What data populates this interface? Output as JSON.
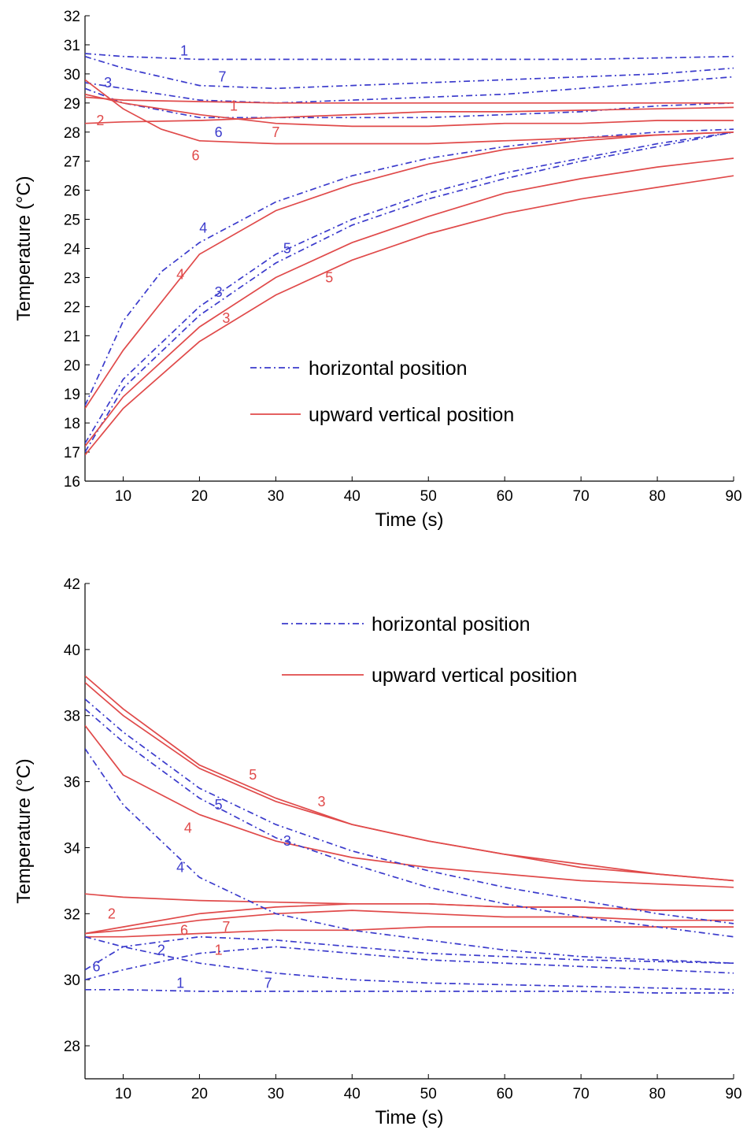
{
  "colors": {
    "horizontal": "#3b3bcc",
    "vertical": "#e04a4a"
  },
  "chart_data": [
    {
      "type": "line",
      "xlabel": "Time (s)",
      "ylabel": "Temperature (°C)",
      "xlim": [
        5,
        90
      ],
      "ylim": [
        16,
        32
      ],
      "xticks": [
        "10",
        "20",
        "30",
        "40",
        "50",
        "60",
        "70",
        "80",
        "90"
      ],
      "yticks": [
        "16",
        "17",
        "18",
        "19",
        "20",
        "21",
        "22",
        "23",
        "24",
        "25",
        "26",
        "27",
        "28",
        "29",
        "30",
        "31",
        "32"
      ],
      "legend": {
        "placement": "center",
        "entries": [
          "horizontal position",
          "upward vertical position"
        ]
      },
      "series": [
        {
          "group": "horizontal",
          "label": "1",
          "label_at": [
            18,
            30.8
          ],
          "x": [
            5,
            10,
            20,
            30,
            40,
            50,
            60,
            70,
            80,
            90
          ],
          "y": [
            30.7,
            30.6,
            30.5,
            30.5,
            30.5,
            30.5,
            30.5,
            30.5,
            30.55,
            30.6
          ]
        },
        {
          "group": "horizontal",
          "label": "7",
          "label_at": [
            23,
            29.9
          ],
          "x": [
            5,
            10,
            20,
            30,
            40,
            50,
            60,
            70,
            80,
            90
          ],
          "y": [
            30.6,
            30.2,
            29.6,
            29.5,
            29.6,
            29.7,
            29.8,
            29.9,
            30.0,
            30.2
          ]
        },
        {
          "group": "horizontal",
          "label": "3",
          "label_at": [
            8,
            29.7
          ],
          "x": [
            5,
            10,
            20,
            30,
            40,
            50,
            60,
            70,
            80,
            90
          ],
          "y": [
            29.7,
            29.5,
            29.1,
            29.0,
            29.1,
            29.2,
            29.3,
            29.5,
            29.7,
            29.9
          ]
        },
        {
          "group": "horizontal",
          "label": "6",
          "label_at": [
            22.5,
            28.0
          ],
          "x": [
            5,
            10,
            20,
            30,
            40,
            50,
            60,
            70,
            80,
            90
          ],
          "y": [
            29.5,
            29.0,
            28.5,
            28.5,
            28.5,
            28.5,
            28.6,
            28.7,
            28.9,
            29.0
          ]
        },
        {
          "group": "horizontal",
          "label": "4",
          "label_at": [
            20.5,
            24.7
          ],
          "x": [
            5,
            10,
            15,
            20,
            30,
            40,
            50,
            60,
            70,
            80,
            90
          ],
          "y": [
            18.6,
            21.5,
            23.2,
            24.2,
            25.6,
            26.5,
            27.1,
            27.5,
            27.8,
            28.0,
            28.1
          ]
        },
        {
          "group": "horizontal",
          "label": "5",
          "label_at": [
            31.5,
            24.0
          ],
          "x": [
            5,
            10,
            20,
            30,
            40,
            50,
            60,
            70,
            80,
            90
          ],
          "y": [
            17.3,
            19.5,
            22.0,
            23.8,
            25.0,
            25.9,
            26.6,
            27.1,
            27.6,
            28.0
          ]
        },
        {
          "group": "horizontal",
          "label": "3",
          "label_at": [
            22.5,
            22.5
          ],
          "x": [
            5,
            10,
            20,
            30,
            40,
            50,
            60,
            70,
            80,
            90
          ],
          "y": [
            17.0,
            19.2,
            21.7,
            23.5,
            24.8,
            25.7,
            26.4,
            27.0,
            27.5,
            28.0
          ]
        },
        {
          "group": "vertical",
          "label": "1",
          "label_at": [
            24.5,
            28.9
          ],
          "x": [
            5,
            10,
            20,
            30,
            40,
            50,
            60,
            70,
            80,
            90
          ],
          "y": [
            29.2,
            29.1,
            29.05,
            29.0,
            29.0,
            29.0,
            29.0,
            29.0,
            29.0,
            29.0
          ]
        },
        {
          "group": "vertical",
          "label": "2",
          "label_at": [
            7,
            28.4
          ],
          "x": [
            5,
            10,
            20,
            30,
            40,
            50,
            60,
            70,
            80,
            90
          ],
          "y": [
            28.3,
            28.35,
            28.4,
            28.5,
            28.6,
            28.7,
            28.7,
            28.75,
            28.8,
            28.85
          ]
        },
        {
          "group": "vertical",
          "label": "7",
          "label_at": [
            30,
            28.0
          ],
          "x": [
            5,
            10,
            20,
            30,
            40,
            50,
            60,
            70,
            80,
            90
          ],
          "y": [
            29.3,
            29.0,
            28.6,
            28.3,
            28.2,
            28.2,
            28.3,
            28.3,
            28.4,
            28.4
          ]
        },
        {
          "group": "vertical",
          "label": "6",
          "label_at": [
            19.5,
            27.2
          ],
          "x": [
            5,
            10,
            15,
            20,
            30,
            40,
            50,
            60,
            70,
            80,
            90
          ],
          "y": [
            29.8,
            28.8,
            28.1,
            27.7,
            27.6,
            27.6,
            27.6,
            27.7,
            27.8,
            27.9,
            28.0
          ]
        },
        {
          "group": "vertical",
          "label": "4",
          "label_at": [
            17.5,
            23.1
          ],
          "x": [
            5,
            10,
            20,
            30,
            40,
            50,
            60,
            70,
            80,
            90
          ],
          "y": [
            18.5,
            20.5,
            23.8,
            25.3,
            26.2,
            26.9,
            27.4,
            27.7,
            27.9,
            28.0
          ]
        },
        {
          "group": "vertical",
          "label": "5",
          "label_at": [
            37,
            23.0
          ],
          "x": [
            5,
            10,
            20,
            30,
            40,
            50,
            60,
            70,
            80,
            90
          ],
          "y": [
            17.2,
            18.9,
            21.3,
            23.0,
            24.2,
            25.1,
            25.9,
            26.4,
            26.8,
            27.1
          ]
        },
        {
          "group": "vertical",
          "label": "3",
          "label_at": [
            23.5,
            21.6
          ],
          "x": [
            5,
            10,
            20,
            30,
            40,
            50,
            60,
            70,
            80,
            90
          ],
          "y": [
            16.9,
            18.5,
            20.8,
            22.4,
            23.6,
            24.5,
            25.2,
            25.7,
            26.1,
            26.5
          ]
        }
      ]
    },
    {
      "type": "line",
      "xlabel": "Time (s)",
      "ylabel": "Temperature (°C)",
      "xlim": [
        5,
        90
      ],
      "ylim": [
        27,
        42
      ],
      "xticks": [
        "10",
        "20",
        "30",
        "40",
        "50",
        "60",
        "70",
        "80",
        "90"
      ],
      "yticks": [
        "28",
        "30",
        "32",
        "34",
        "36",
        "38",
        "40",
        "42"
      ],
      "legend": {
        "placement": "top-right",
        "entries": [
          "horizontal position",
          "upward vertical position"
        ]
      },
      "series": [
        {
          "group": "vertical",
          "label": "5",
          "label_at": [
            27,
            36.2
          ],
          "x": [
            5,
            10,
            20,
            30,
            40,
            50,
            60,
            70,
            80,
            90
          ],
          "y": [
            39.2,
            38.2,
            36.5,
            35.5,
            34.7,
            34.2,
            33.8,
            33.5,
            33.2,
            33.0
          ]
        },
        {
          "group": "vertical",
          "label": "3",
          "label_at": [
            36,
            35.4
          ],
          "x": [
            5,
            10,
            20,
            30,
            40,
            50,
            60,
            70,
            80,
            90
          ],
          "y": [
            39.0,
            38.0,
            36.4,
            35.4,
            34.7,
            34.2,
            33.8,
            33.4,
            33.2,
            33.0
          ]
        },
        {
          "group": "vertical",
          "label": "4",
          "label_at": [
            18.5,
            34.6
          ],
          "x": [
            5,
            10,
            20,
            30,
            40,
            50,
            60,
            70,
            80,
            90
          ],
          "y": [
            37.7,
            36.2,
            35.0,
            34.2,
            33.7,
            33.4,
            33.2,
            33.0,
            32.9,
            32.8
          ]
        },
        {
          "group": "vertical",
          "label": "2",
          "label_at": [
            8.5,
            32.0
          ],
          "x": [
            5,
            10,
            20,
            30,
            40,
            50,
            60,
            70,
            80,
            90
          ],
          "y": [
            32.6,
            32.5,
            32.4,
            32.35,
            32.3,
            32.3,
            32.2,
            32.2,
            32.1,
            32.1
          ]
        },
        {
          "group": "vertical",
          "label": "6",
          "label_at": [
            18,
            31.5
          ],
          "x": [
            5,
            10,
            20,
            30,
            40,
            50,
            60,
            70,
            80,
            90
          ],
          "y": [
            31.4,
            31.6,
            32.0,
            32.2,
            32.3,
            32.3,
            32.2,
            32.2,
            32.1,
            32.1
          ]
        },
        {
          "group": "vertical",
          "label": "7",
          "label_at": [
            23.5,
            31.6
          ],
          "x": [
            5,
            10,
            20,
            30,
            40,
            50,
            60,
            70,
            80,
            90
          ],
          "y": [
            31.4,
            31.5,
            31.8,
            32.0,
            32.1,
            32.0,
            31.9,
            31.9,
            31.8,
            31.8
          ]
        },
        {
          "group": "vertical",
          "label": "1",
          "label_at": [
            22.5,
            30.9
          ],
          "x": [
            5,
            10,
            20,
            30,
            40,
            50,
            60,
            70,
            80,
            90
          ],
          "y": [
            31.3,
            31.3,
            31.4,
            31.5,
            31.5,
            31.6,
            31.6,
            31.6,
            31.6,
            31.6
          ]
        },
        {
          "group": "horizontal",
          "label": "5",
          "label_at": [
            22.5,
            35.3
          ],
          "x": [
            5,
            10,
            20,
            30,
            40,
            50,
            60,
            70,
            80,
            90
          ],
          "y": [
            38.5,
            37.5,
            35.8,
            34.7,
            33.9,
            33.3,
            32.8,
            32.4,
            32.0,
            31.7
          ]
        },
        {
          "group": "horizontal",
          "label": "3",
          "label_at": [
            31.5,
            34.2
          ],
          "x": [
            5,
            10,
            20,
            30,
            40,
            50,
            60,
            70,
            80,
            90
          ],
          "y": [
            38.2,
            37.2,
            35.5,
            34.3,
            33.5,
            32.8,
            32.3,
            31.9,
            31.6,
            31.3
          ]
        },
        {
          "group": "horizontal",
          "label": "4",
          "label_at": [
            17.5,
            33.4
          ],
          "x": [
            5,
            10,
            15,
            20,
            30,
            40,
            50,
            60,
            70,
            80,
            90
          ],
          "y": [
            37.0,
            35.3,
            34.2,
            33.1,
            32.0,
            31.5,
            31.2,
            30.9,
            30.7,
            30.6,
            30.5
          ]
        },
        {
          "group": "horizontal",
          "label": "6",
          "label_at": [
            6.5,
            30.4
          ],
          "x": [
            5,
            10,
            20,
            30,
            40,
            50,
            60,
            70,
            80,
            90
          ],
          "y": [
            30.3,
            31.0,
            31.3,
            31.2,
            31.0,
            30.8,
            30.7,
            30.6,
            30.55,
            30.5
          ]
        },
        {
          "group": "horizontal",
          "label": "2",
          "label_at": [
            15,
            30.9
          ],
          "x": [
            5,
            10,
            20,
            30,
            40,
            50,
            60,
            70,
            80,
            90
          ],
          "y": [
            31.3,
            31.0,
            30.5,
            30.2,
            30.0,
            29.9,
            29.85,
            29.8,
            29.75,
            29.7
          ]
        },
        {
          "group": "horizontal",
          "label": "7",
          "label_at": [
            29,
            29.9
          ],
          "x": [
            5,
            10,
            20,
            30,
            40,
            50,
            60,
            70,
            80,
            90
          ],
          "y": [
            30.0,
            30.3,
            30.8,
            31.0,
            30.8,
            30.6,
            30.5,
            30.4,
            30.3,
            30.2
          ]
        },
        {
          "group": "horizontal",
          "label": "1",
          "label_at": [
            17.5,
            29.9
          ],
          "x": [
            5,
            10,
            20,
            30,
            40,
            50,
            60,
            70,
            80,
            90
          ],
          "y": [
            29.7,
            29.7,
            29.65,
            29.65,
            29.65,
            29.65,
            29.65,
            29.65,
            29.6,
            29.6
          ]
        }
      ]
    }
  ]
}
